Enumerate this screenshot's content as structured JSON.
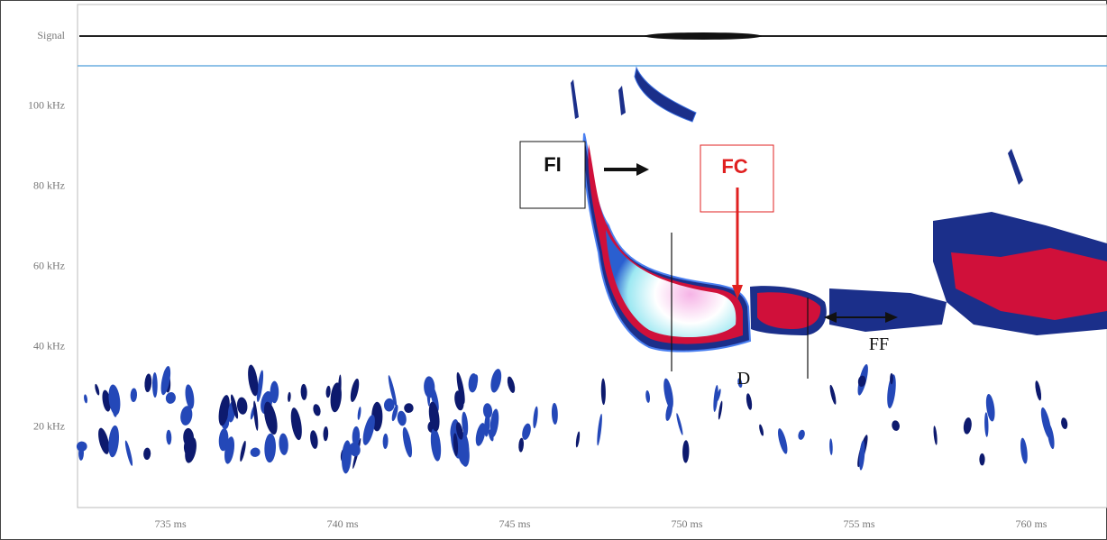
{
  "chart_data": {
    "type": "spectrogram",
    "signal_label": "Signal",
    "xlim": [
      732.3,
      762.2
    ],
    "ylim": [
      0,
      110
    ],
    "xticks": [
      {
        "value": 735,
        "label": "735 ms"
      },
      {
        "value": 740,
        "label": "740 ms"
      },
      {
        "value": 745,
        "label": "745 ms"
      },
      {
        "value": 750,
        "label": "750 ms"
      },
      {
        "value": 755,
        "label": "755 ms"
      },
      {
        "value": 760,
        "label": "760 ms"
      }
    ],
    "yticks": [
      {
        "value": 20,
        "label": "20 kHz"
      },
      {
        "value": 40,
        "label": "40 kHz"
      },
      {
        "value": 60,
        "label": "60 kHz"
      },
      {
        "value": 80,
        "label": "80 kHz"
      },
      {
        "value": 100,
        "label": "100 kHz"
      }
    ],
    "annotations": {
      "fi": "FI",
      "fc": "FC",
      "ff": "FF",
      "d": "D"
    }
  }
}
